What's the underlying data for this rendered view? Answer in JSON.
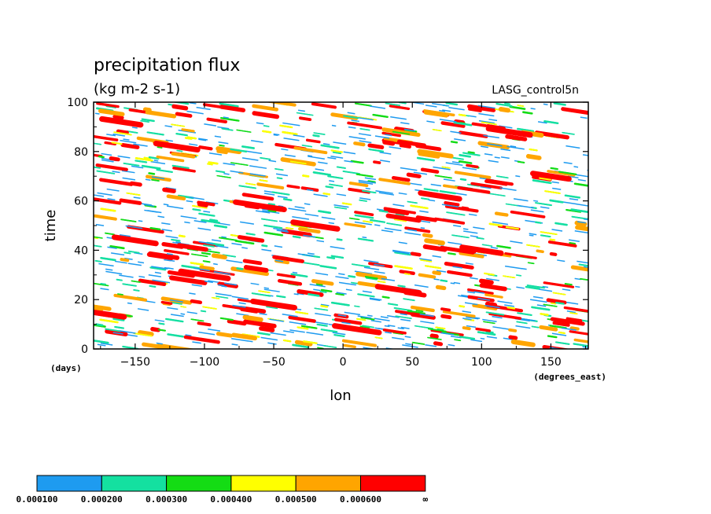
{
  "chart_data": {
    "type": "heatmap",
    "title": "precipitation flux",
    "subtitle": "(kg m-2 s-1)",
    "annotation": "LASG_control5n",
    "xlabel": "lon",
    "xunits": "(degrees_east)",
    "ylabel": "time",
    "yunits": "(days)",
    "xlim": [
      -180,
      177
    ],
    "ylim": [
      0,
      100
    ],
    "xticks": [
      -150,
      -100,
      -50,
      0,
      50,
      100,
      150
    ],
    "xtick_labels": [
      "−150",
      "−100",
      "−50",
      "0",
      "50",
      "100",
      "150"
    ],
    "yticks": [
      0,
      20,
      40,
      60,
      80,
      100
    ],
    "ytick_labels": [
      "0",
      "20",
      "40",
      "60",
      "80",
      "100"
    ],
    "colorbar": {
      "levels": [
        "0.000100",
        "0.000200",
        "0.000300",
        "0.000400",
        "0.000500",
        "0.000600",
        "∞"
      ],
      "colors": [
        "#1e9bf0",
        "#14e0a0",
        "#14dc14",
        "#ffff00",
        "#ffa500",
        "#ff0000"
      ]
    },
    "features": [
      {
        "lon": -160,
        "time": 92,
        "level": 5,
        "length": 28
      },
      {
        "lon": -120,
        "time": 82,
        "level": 5,
        "length": 30
      },
      {
        "lon": -60,
        "time": 58,
        "level": 5,
        "length": 35
      },
      {
        "lon": -20,
        "time": 50,
        "level": 5,
        "length": 32
      },
      {
        "lon": 40,
        "time": 24,
        "level": 5,
        "length": 30
      },
      {
        "lon": 120,
        "time": 88,
        "level": 5,
        "length": 30
      },
      {
        "lon": 150,
        "time": 70,
        "level": 5,
        "length": 26
      },
      {
        "lon": -150,
        "time": 44,
        "level": 5,
        "length": 30
      },
      {
        "lon": -100,
        "time": 30,
        "level": 5,
        "length": 34
      },
      {
        "lon": 100,
        "time": 40,
        "level": 5,
        "length": 28
      },
      {
        "lon": 10,
        "time": 8,
        "level": 5,
        "length": 32
      },
      {
        "lon": -50,
        "time": 18,
        "level": 5,
        "length": 30
      },
      {
        "lon": 70,
        "time": 62,
        "level": 5,
        "length": 28
      },
      {
        "lon": -170,
        "time": 14,
        "level": 5,
        "length": 24
      }
    ],
    "pattern_seed": 7,
    "streak_count": 1100
  }
}
